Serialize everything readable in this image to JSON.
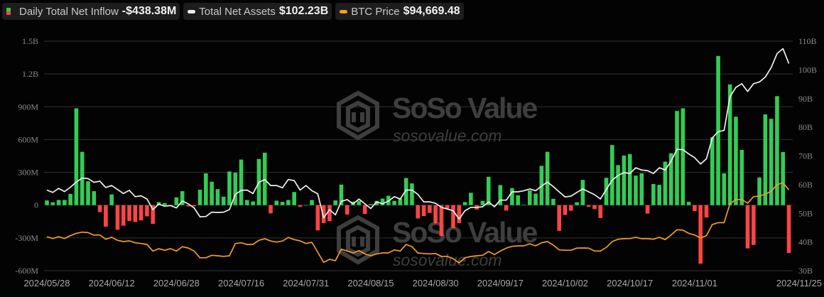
{
  "legend": [
    {
      "label": "Daily Total Net Inflow",
      "value": "-$438.38M",
      "colors": [
        "#33cc55",
        "#ff4444"
      ]
    },
    {
      "label": "Total Net Assets",
      "value": "$102.23B",
      "color": "#f0f0f0"
    },
    {
      "label": "BTC Price",
      "value": "$94,669.48",
      "color": "#f39c24"
    }
  ],
  "watermark": {
    "brand": "SoSo Value",
    "site": "sosovalue.com"
  },
  "chart_data": {
    "type": "bar+line",
    "grid": true,
    "left_axis": {
      "ticks": [
        "1.5B",
        "1.2B",
        "900M",
        "600M",
        "300M",
        "0",
        "-300M",
        "-600M"
      ],
      "range": [
        -600,
        1500
      ],
      "unit": "M USD"
    },
    "right_axis": {
      "ticks": [
        "110B",
        "100B",
        "90B",
        "80B",
        "70B",
        "60B",
        "50B",
        "40B",
        "30B"
      ],
      "range": [
        30,
        110
      ],
      "unit": "B USD"
    },
    "x_ticks": [
      "2024/05/28",
      "2024/06/12",
      "2024/06/28",
      "2024/07/16",
      "2024/07/31",
      "2024/08/15",
      "2024/08/30",
      "2024/09/17",
      "2024/10/02",
      "2024/10/17",
      "2024/11/01",
      "2024/11/25"
    ],
    "daily_net_inflow_musd": [
      43,
      26,
      47,
      47,
      103,
      886,
      488,
      218,
      128,
      -64,
      -197,
      98,
      -225,
      -188,
      -146,
      -154,
      -139,
      -103,
      -171,
      28,
      19,
      0,
      71,
      128,
      -11,
      -10,
      141,
      291,
      214,
      146,
      77,
      308,
      297,
      417,
      47,
      34,
      422,
      480,
      -75,
      41,
      30,
      47,
      120,
      -15,
      0,
      47,
      -231,
      -165,
      -146,
      43,
      188,
      -86,
      32,
      39,
      -81,
      9,
      39,
      60,
      86,
      39,
      60,
      248,
      199,
      -122,
      -100,
      -71,
      -167,
      -283,
      -32,
      -210,
      -165,
      28,
      113,
      -39,
      39,
      259,
      0,
      184,
      -49,
      156,
      90,
      2,
      135,
      105,
      360,
      488,
      58,
      -235,
      -90,
      -51,
      26,
      231,
      -15,
      -36,
      -118,
      250,
      550,
      366,
      454,
      467,
      270,
      291,
      -77,
      193,
      186,
      398,
      475,
      862,
      886,
      30,
      -54,
      -535,
      -113,
      621,
      1365,
      291,
      1104,
      809,
      505,
      -396,
      -364,
      253,
      830,
      790,
      997,
      486,
      -438.38
    ],
    "total_net_assets_busd": [
      58.1,
      57.3,
      58.7,
      57.6,
      59.1,
      60.9,
      62.3,
      62.1,
      60.8,
      61.2,
      59.0,
      59.7,
      58.3,
      56.9,
      58.0,
      55.8,
      56.1,
      55.0,
      51.3,
      53.2,
      52.5,
      52.7,
      51.9,
      54.3,
      53.3,
      51.9,
      48.8,
      48.9,
      50.4,
      50.3,
      50.4,
      51.3,
      56.6,
      58.0,
      58.1,
      56.9,
      60.8,
      61.8,
      59.7,
      59.7,
      58.9,
      61.8,
      61.4,
      58.1,
      59.7,
      57.9,
      56.8,
      48.4,
      51.3,
      49.5,
      54.2,
      54.8,
      53.3,
      55.0,
      53.3,
      51.7,
      54.0,
      53.3,
      54.3,
      55.8,
      55.0,
      58.1,
      58.1,
      56.6,
      54.0,
      54.0,
      53.5,
      52.1,
      51.5,
      50.9,
      48.0,
      50.9,
      52.1,
      52.1,
      52.3,
      54.0,
      52.3,
      54.6,
      54.6,
      57.5,
      57.5,
      57.9,
      58.5,
      57.9,
      59.5,
      60.9,
      59.3,
      57.5,
      55.7,
      56.0,
      57.3,
      58.5,
      57.5,
      56.5,
      55.0,
      58.3,
      61.6,
      63.2,
      64.2,
      63.9,
      65.9,
      65.1,
      64.9,
      63.9,
      65.9,
      65.1,
      68.2,
      72.3,
      72.2,
      70.7,
      69.4,
      67.2,
      69.0,
      76.3,
      78.5,
      78.9,
      90.6,
      93.9,
      95.2,
      92.5,
      95.2,
      95.8,
      97.5,
      100.8,
      105.7,
      107.4,
      102.23
    ],
    "btc_price_usd": [
      68400,
      67400,
      68400,
      67400,
      69000,
      70300,
      71000,
      70700,
      69300,
      69400,
      67000,
      68100,
      66400,
      65700,
      66100,
      65000,
      64600,
      64100,
      60400,
      61700,
      60800,
      61700,
      60400,
      62800,
      62100,
      60400,
      56600,
      56600,
      58000,
      57700,
      57400,
      57700,
      64600,
      65000,
      64100,
      64100,
      66400,
      67300,
      66000,
      65400,
      66000,
      68000,
      66800,
      66100,
      64600,
      65300,
      59700,
      54000,
      55700,
      55000,
      61400,
      60400,
      59300,
      60600,
      58800,
      57700,
      58800,
      59300,
      59300,
      61000,
      60400,
      64100,
      62800,
      59300,
      59000,
      58800,
      59000,
      57400,
      57400,
      56100,
      53700,
      56600,
      57300,
      57700,
      58000,
      60100,
      58400,
      60400,
      62000,
      63000,
      63300,
      63300,
      64400,
      63300,
      65000,
      65700,
      63700,
      61000,
      60800,
      60800,
      62000,
      62100,
      62000,
      60400,
      60400,
      62400,
      65700,
      67000,
      67300,
      67400,
      68100,
      67300,
      67300,
      67000,
      68100,
      66800,
      69400,
      72300,
      72100,
      70300,
      69400,
      67700,
      69000,
      75300,
      76300,
      76300,
      86900,
      89300,
      89300,
      87200,
      90900,
      91200,
      92300,
      93900,
      97600,
      98700,
      94669.48
    ],
    "colors": {
      "inflow_positive": "#33cc55",
      "inflow_negative": "#ff4444",
      "net_assets": "#f0f0f0",
      "btc_price": "#f39c24",
      "grid": "#333333"
    }
  }
}
